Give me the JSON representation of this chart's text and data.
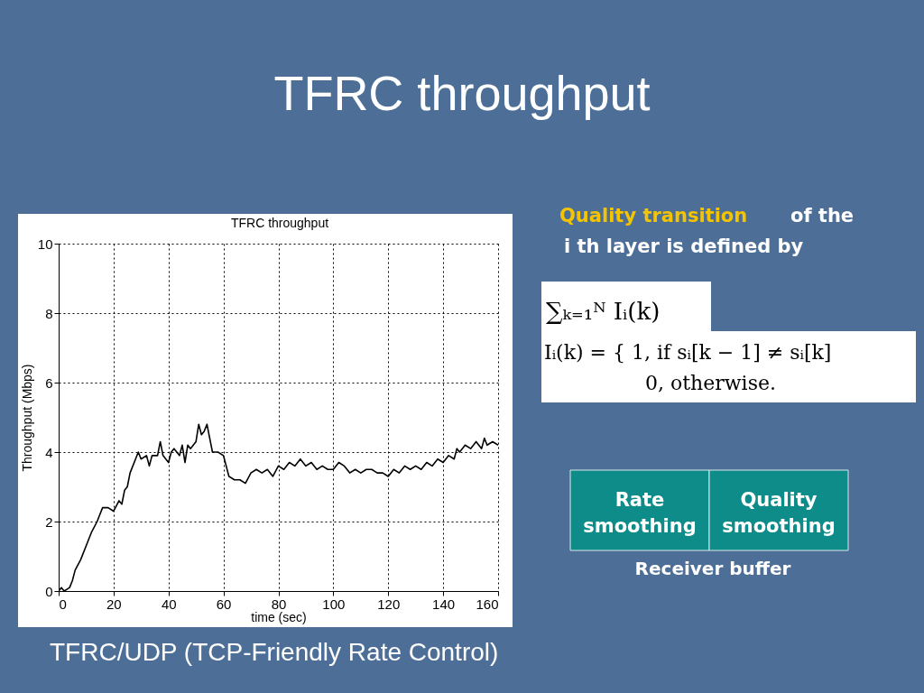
{
  "chart_data": {
    "type": "line",
    "title": "TFRC throughput",
    "subtitle": "TFRC throughput",
    "xlabel": "time (sec)",
    "ylabel": "Throughput (Mbps)",
    "x": [
      0,
      1,
      2,
      3,
      4,
      5,
      6,
      8,
      10,
      12,
      14,
      15,
      16,
      18,
      20,
      22,
      23,
      24,
      25,
      26,
      28,
      29,
      30,
      32,
      33,
      34,
      36,
      37,
      38,
      40,
      41,
      42,
      44,
      45,
      46,
      47,
      48,
      50,
      51,
      52,
      53,
      54,
      55,
      56,
      58,
      60,
      61,
      62,
      64,
      66,
      68,
      70,
      72,
      74,
      76,
      78,
      80,
      82,
      84,
      86,
      88,
      90,
      92,
      94,
      96,
      98,
      100,
      102,
      104,
      106,
      108,
      110,
      112,
      114,
      116,
      118,
      120,
      122,
      124,
      126,
      128,
      130,
      132,
      134,
      136,
      138,
      140,
      142,
      144,
      145,
      146,
      148,
      150,
      152,
      154,
      155,
      156,
      158,
      160
    ],
    "series": [
      {
        "color": "#000000",
        "values": [
          0.0,
          0.1,
          0.0,
          0.05,
          0.1,
          0.3,
          0.6,
          0.9,
          1.3,
          1.7,
          2.0,
          2.2,
          2.4,
          2.4,
          2.3,
          2.6,
          2.5,
          2.9,
          3.0,
          3.4,
          3.8,
          4.0,
          3.8,
          3.9,
          3.6,
          3.9,
          3.9,
          4.3,
          3.9,
          3.7,
          4.0,
          4.1,
          3.9,
          4.2,
          3.7,
          4.2,
          4.1,
          4.3,
          4.8,
          4.5,
          4.6,
          4.8,
          4.4,
          4.0,
          4.0,
          3.9,
          3.6,
          3.3,
          3.2,
          3.2,
          3.1,
          3.4,
          3.5,
          3.4,
          3.5,
          3.3,
          3.6,
          3.5,
          3.7,
          3.6,
          3.8,
          3.6,
          3.7,
          3.5,
          3.6,
          3.5,
          3.5,
          3.7,
          3.6,
          3.4,
          3.5,
          3.4,
          3.5,
          3.5,
          3.4,
          3.4,
          3.3,
          3.5,
          3.4,
          3.6,
          3.5,
          3.6,
          3.5,
          3.7,
          3.6,
          3.8,
          3.7,
          3.9,
          3.8,
          4.1,
          4.0,
          4.2,
          4.1,
          4.3,
          4.1,
          4.4,
          4.2,
          4.3,
          4.2
        ]
      }
    ],
    "xlim": [
      0,
      160
    ],
    "ylim": [
      0,
      10
    ],
    "xticks": [
      0,
      20,
      40,
      60,
      80,
      100,
      120,
      140,
      160
    ],
    "yticks": [
      0,
      2,
      4,
      6,
      8,
      10
    ],
    "grid": true,
    "annotations": [
      "Quality transition",
      "of the",
      "i th layer is defined by",
      "∑ₖ₌₁ᴺ Iᵢ(k)",
      "Iᵢ(k) = { 1,  if sᵢ[k − 1] ≠ sᵢ[k]",
      "0,  otherwise.",
      "Rate smoothing",
      "Quality smoothing",
      "Receiver buffer",
      "TFRC/UDP (TCP-Friendly Rate Control)"
    ]
  }
}
